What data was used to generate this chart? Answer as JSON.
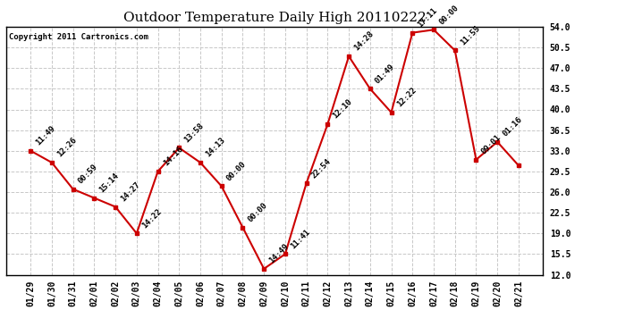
{
  "title": "Outdoor Temperature Daily High 20110222",
  "copyright": "Copyright 2011 Cartronics.com",
  "x_labels": [
    "01/29",
    "01/30",
    "01/31",
    "02/01",
    "02/02",
    "02/03",
    "02/04",
    "02/05",
    "02/06",
    "02/07",
    "02/08",
    "02/09",
    "02/10",
    "02/11",
    "02/12",
    "02/13",
    "02/14",
    "02/15",
    "02/16",
    "02/17",
    "02/18",
    "02/19",
    "02/20",
    "02/21"
  ],
  "y_values": [
    33.0,
    31.0,
    26.5,
    25.0,
    23.5,
    19.0,
    29.5,
    33.5,
    31.0,
    27.0,
    20.0,
    13.0,
    15.5,
    27.5,
    37.5,
    49.0,
    43.5,
    39.5,
    53.0,
    53.5,
    50.0,
    31.5,
    34.5,
    30.5
  ],
  "annotations": [
    "11:49",
    "12:26",
    "00:59",
    "15:14",
    "14:27",
    "14:22",
    "14:16",
    "13:58",
    "14:13",
    "00:00",
    "00:00",
    "14:49",
    "11:41",
    "22:54",
    "12:10",
    "14:28",
    "01:49",
    "12:22",
    "17:11",
    "00:00",
    "11:55",
    "09:01",
    "01:16",
    ""
  ],
  "line_color": "#cc0000",
  "marker_color": "#cc0000",
  "bg_color": "#ffffff",
  "grid_color": "#c8c8c8",
  "title_fontsize": 11,
  "annotation_fontsize": 6.5,
  "copyright_fontsize": 6.5,
  "tick_fontsize": 7,
  "ylim_min": 12.0,
  "ylim_max": 54.0,
  "yticks": [
    12.0,
    15.5,
    19.0,
    22.5,
    26.0,
    29.5,
    33.0,
    36.5,
    40.0,
    43.5,
    47.0,
    50.5,
    54.0
  ]
}
